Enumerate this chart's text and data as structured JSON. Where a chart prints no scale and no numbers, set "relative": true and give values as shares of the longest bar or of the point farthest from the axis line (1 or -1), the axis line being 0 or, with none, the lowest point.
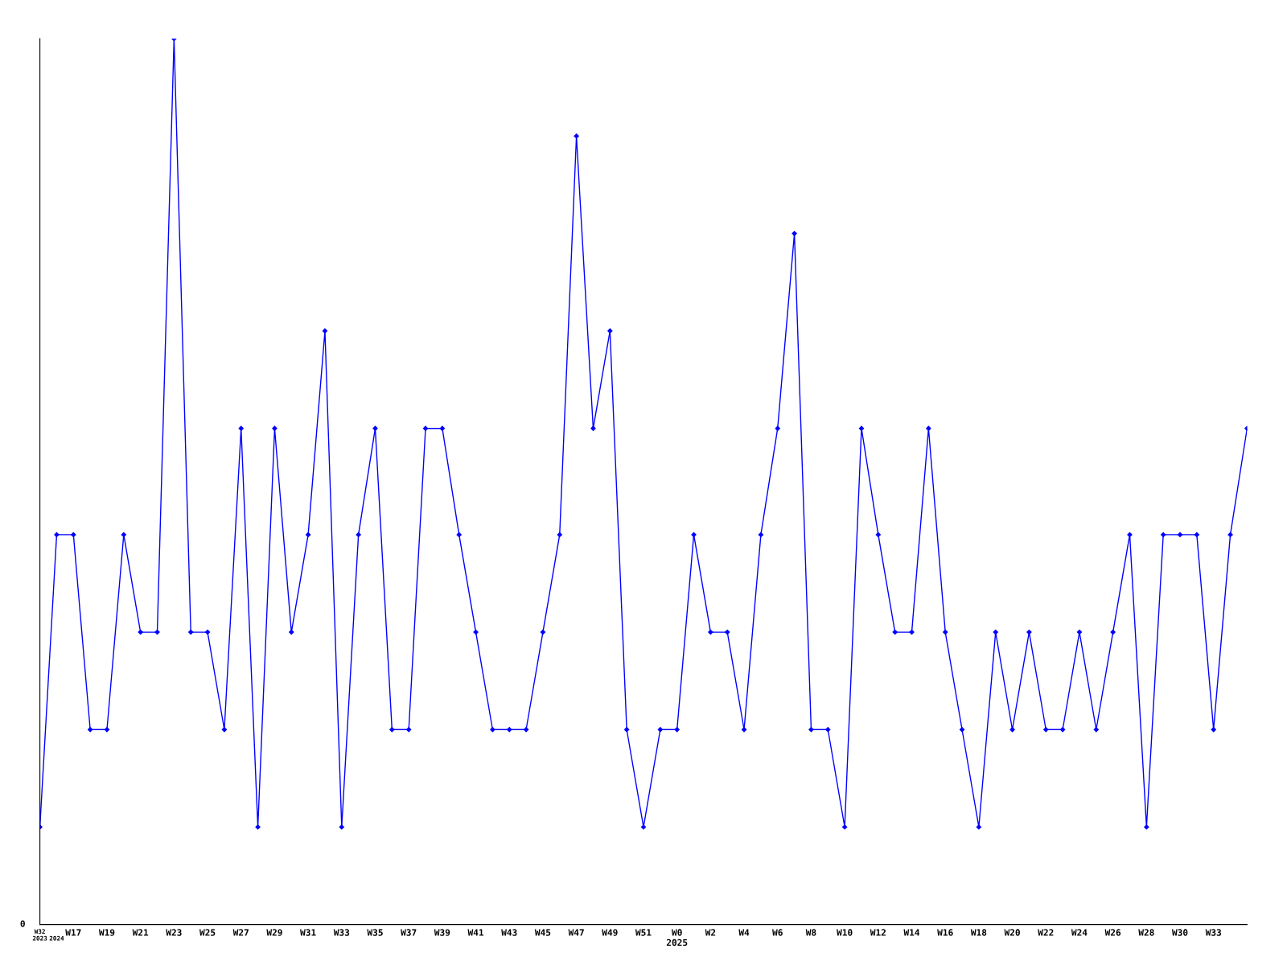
{
  "chart_data": {
    "type": "line",
    "relative": true,
    "color": "#0000ff",
    "marker": "diamond",
    "grid": false,
    "annotations": [
      "0"
    ],
    "categories": [
      "W32\n2023",
      "\n2024",
      "W17",
      null,
      "W19",
      null,
      "W21",
      null,
      "W23",
      null,
      "W25",
      null,
      "W27",
      null,
      "W29",
      null,
      "W31",
      null,
      "W33",
      null,
      "W35",
      null,
      "W37",
      null,
      "W39",
      null,
      "W41",
      null,
      "W43",
      null,
      "W45",
      null,
      "W47",
      null,
      "W49",
      null,
      "W51",
      null,
      "W0\n2025",
      null,
      "W2",
      null,
      "W4",
      null,
      "W6",
      null,
      "W8",
      null,
      "W10",
      null,
      "W12",
      null,
      "W14",
      null,
      "W16",
      null,
      "W18",
      null,
      "W20",
      null,
      "W22",
      null,
      "W24",
      null,
      "W26",
      null,
      "W28",
      null,
      "W30",
      null,
      "W33",
      null,
      null
    ],
    "values": [
      0.11,
      0.44,
      0.44,
      0.22,
      0.22,
      0.44,
      0.33,
      0.33,
      1,
      0.33,
      0.33,
      0.22,
      0.56,
      0.11,
      0.56,
      0.33,
      0.44,
      0.67,
      0.11,
      0.44,
      0.56,
      0.22,
      0.22,
      0.56,
      0.56,
      0.44,
      0.33,
      0.22,
      0.22,
      0.22,
      0.33,
      0.44,
      0.89,
      0.56,
      0.67,
      0.22,
      0.11,
      0.22,
      0.22,
      0.44,
      0.33,
      0.33,
      0.22,
      0.44,
      0.56,
      0.78,
      0.22,
      0.22,
      0.11,
      0.56,
      0.44,
      0.33,
      0.33,
      0.56,
      0.33,
      0.22,
      0.11,
      0.33,
      0.22,
      0.33,
      0.22,
      0.22,
      0.33,
      0.22,
      0.33,
      0.44,
      0.11,
      0.44,
      0.44,
      0.44,
      0.22,
      0.44,
      0.56
    ]
  }
}
